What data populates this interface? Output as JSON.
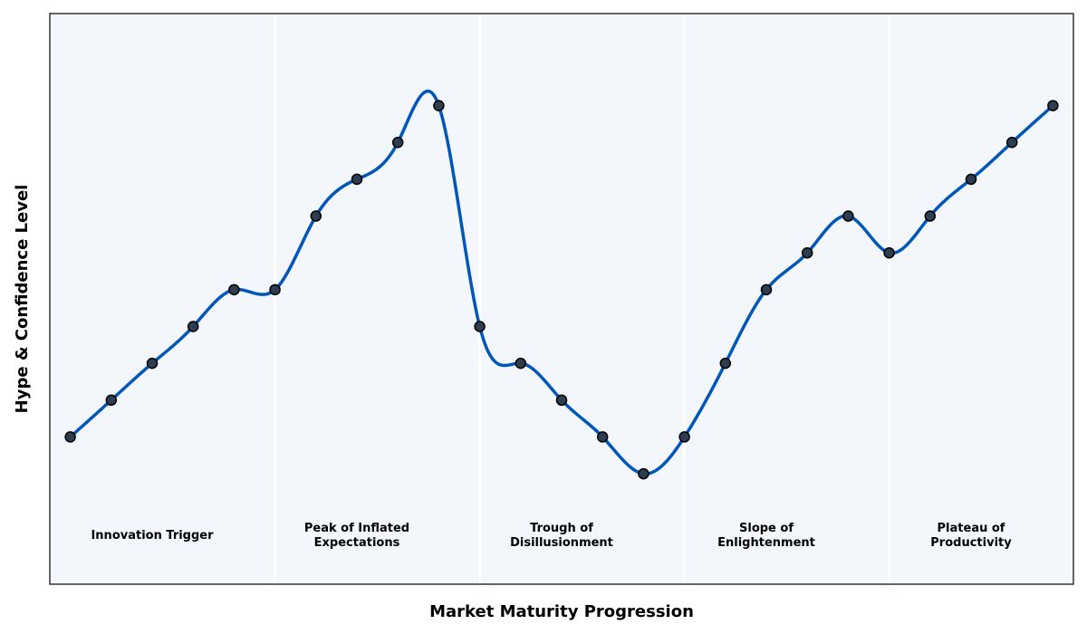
{
  "chart_data": {
    "type": "line",
    "title": "",
    "xlabel": "Market Maturity Progression",
    "ylabel": "Hype & Confidence Level",
    "x": [
      0,
      1,
      2,
      3,
      4,
      5,
      6,
      7,
      8,
      9,
      10,
      11,
      12,
      13,
      14,
      15,
      16,
      17,
      18,
      19,
      20,
      21,
      22,
      23,
      24
    ],
    "y": [
      1,
      2,
      3,
      4,
      5,
      5,
      7,
      8,
      9,
      10,
      4,
      3,
      2,
      1,
      0,
      1,
      3,
      5,
      6,
      7,
      6,
      7,
      8,
      9,
      10
    ],
    "xlim": [
      -0.5,
      24.5
    ],
    "ylim": [
      -3,
      12.5
    ],
    "grid": false,
    "ticks_shown": false,
    "phase_boundaries": [
      5,
      10,
      15,
      20
    ],
    "phases": [
      {
        "label": "Innovation Trigger",
        "center": 2
      },
      {
        "label": "Peak of Inflated\nExpectations",
        "center": 7
      },
      {
        "label": "Trough of\nDisillusionment",
        "center": 12
      },
      {
        "label": "Slope of\nEnlightenment",
        "center": 17
      },
      {
        "label": "Plateau of\nProductivity",
        "center": 22
      }
    ],
    "colors": {
      "line": "#0057b8",
      "marker_fill": "#2c3e50",
      "marker_edge": "#000000",
      "plot_background": "#f3f6fa",
      "divider": "#ffffff"
    }
  }
}
